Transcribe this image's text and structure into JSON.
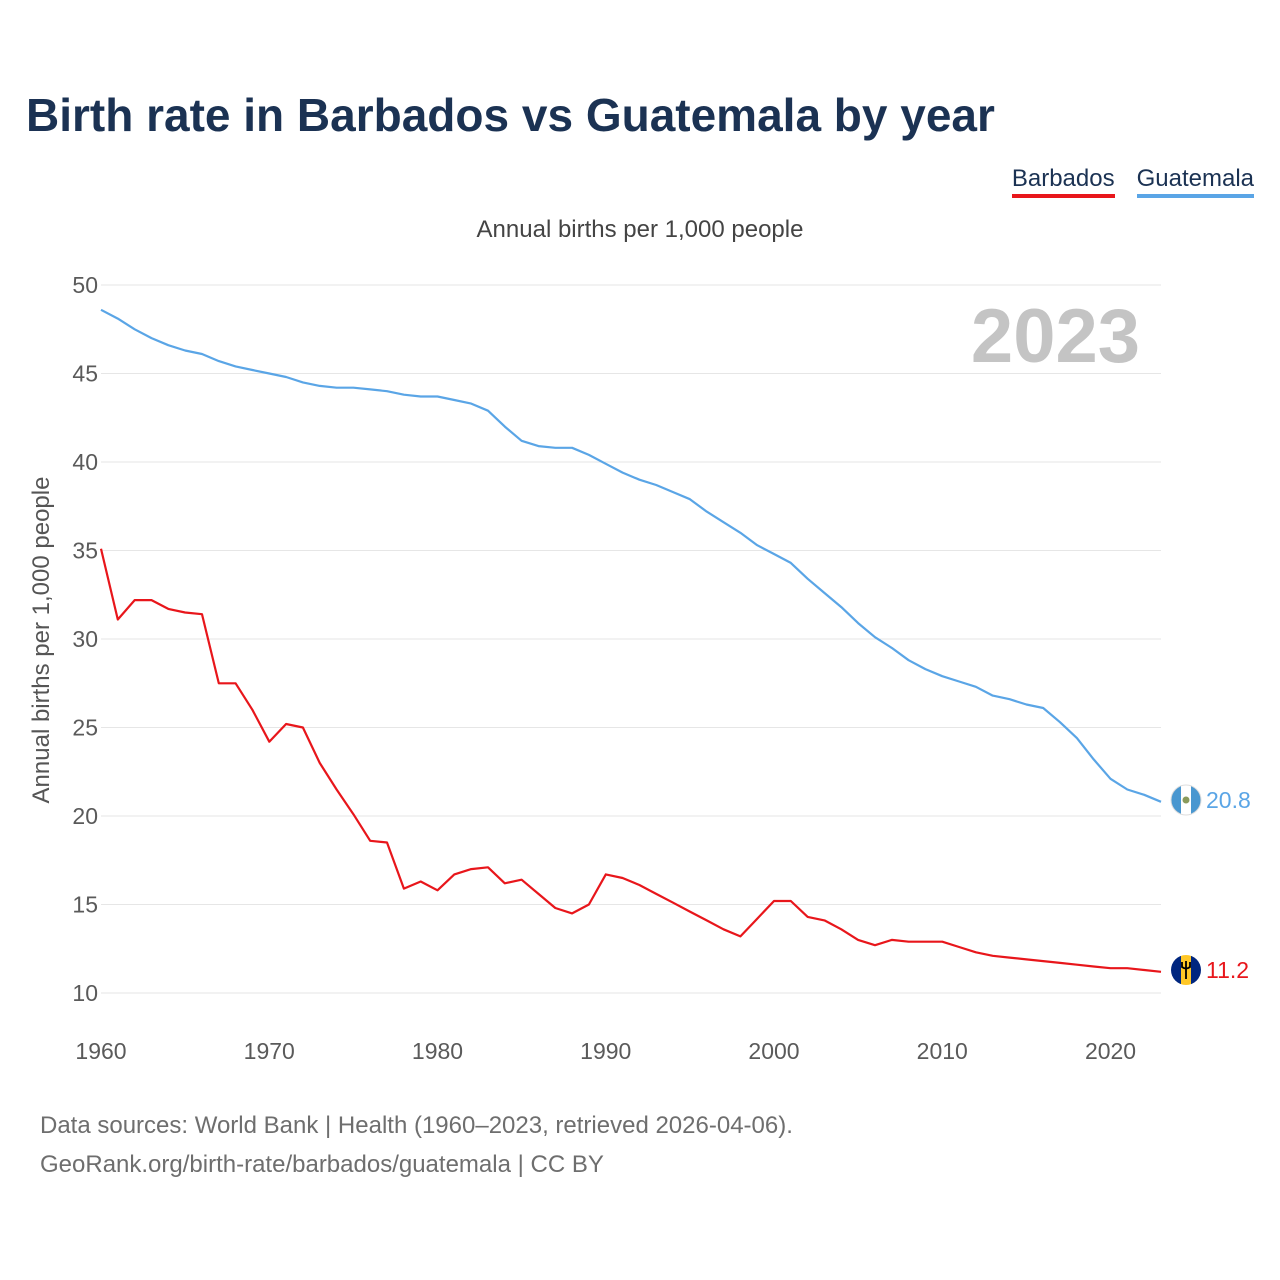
{
  "title": "Birth rate in Barbados vs Guatemala by year",
  "subtitle": "Annual births per 1,000 people",
  "year_watermark": "2023",
  "source": {
    "line1": "Data sources: World Bank | Health (1960–2023, retrieved 2026-04-06).",
    "line2": "GeoRank.org/birth-rate/barbados/guatemala | CC BY"
  },
  "chart_data": {
    "type": "line",
    "title": "Birth rate in Barbados vs Guatemala by year",
    "xlabel": "",
    "ylabel": "Annual births per 1,000 people",
    "xlim": [
      1960,
      2023
    ],
    "ylim": [
      10,
      50
    ],
    "y_ticks": [
      10,
      15,
      20,
      25,
      30,
      35,
      40,
      45,
      50
    ],
    "x_ticks": [
      1960,
      1970,
      1980,
      1990,
      2000,
      2010,
      2020
    ],
    "grid": true,
    "legend_position": "top-right",
    "x": [
      1960,
      1961,
      1962,
      1963,
      1964,
      1965,
      1966,
      1967,
      1968,
      1969,
      1970,
      1971,
      1972,
      1973,
      1974,
      1975,
      1976,
      1977,
      1978,
      1979,
      1980,
      1981,
      1982,
      1983,
      1984,
      1985,
      1986,
      1987,
      1988,
      1989,
      1990,
      1991,
      1992,
      1993,
      1994,
      1995,
      1996,
      1997,
      1998,
      1999,
      2000,
      2001,
      2002,
      2003,
      2004,
      2005,
      2006,
      2007,
      2008,
      2009,
      2010,
      2011,
      2012,
      2013,
      2014,
      2015,
      2016,
      2017,
      2018,
      2019,
      2020,
      2021,
      2022,
      2023
    ],
    "series": [
      {
        "name": "Barbados",
        "color": "#e8161b",
        "end_label": "11.2",
        "values": [
          35.1,
          31.1,
          32.2,
          32.2,
          31.7,
          31.5,
          31.4,
          27.5,
          27.5,
          26.0,
          24.2,
          25.2,
          25.0,
          23.0,
          21.5,
          20.1,
          18.6,
          18.5,
          15.9,
          16.3,
          15.8,
          16.7,
          17.0,
          17.1,
          16.2,
          16.4,
          15.6,
          14.8,
          14.5,
          15.0,
          16.7,
          16.5,
          16.1,
          15.6,
          15.1,
          14.6,
          14.1,
          13.6,
          13.2,
          14.2,
          15.2,
          15.2,
          14.3,
          14.1,
          13.6,
          13.0,
          12.7,
          13.0,
          12.9,
          12.9,
          12.9,
          12.6,
          12.3,
          12.1,
          12.0,
          11.9,
          11.8,
          11.7,
          11.6,
          11.5,
          11.4,
          11.4,
          11.3,
          11.2
        ]
      },
      {
        "name": "Guatemala",
        "color": "#5aa5e6",
        "end_label": "20.8",
        "values": [
          48.6,
          48.1,
          47.5,
          47.0,
          46.6,
          46.3,
          46.1,
          45.7,
          45.4,
          45.2,
          45.0,
          44.8,
          44.5,
          44.3,
          44.2,
          44.2,
          44.1,
          44.0,
          43.8,
          43.7,
          43.7,
          43.5,
          43.3,
          42.9,
          42.0,
          41.2,
          40.9,
          40.8,
          40.8,
          40.4,
          39.9,
          39.4,
          39.0,
          38.7,
          38.3,
          37.9,
          37.2,
          36.6,
          36.0,
          35.3,
          34.8,
          34.3,
          33.4,
          32.6,
          31.8,
          30.9,
          30.1,
          29.5,
          28.8,
          28.3,
          27.9,
          27.6,
          27.3,
          26.8,
          26.6,
          26.3,
          26.1,
          25.3,
          24.4,
          23.2,
          22.1,
          21.5,
          21.2,
          20.8
        ]
      }
    ]
  }
}
